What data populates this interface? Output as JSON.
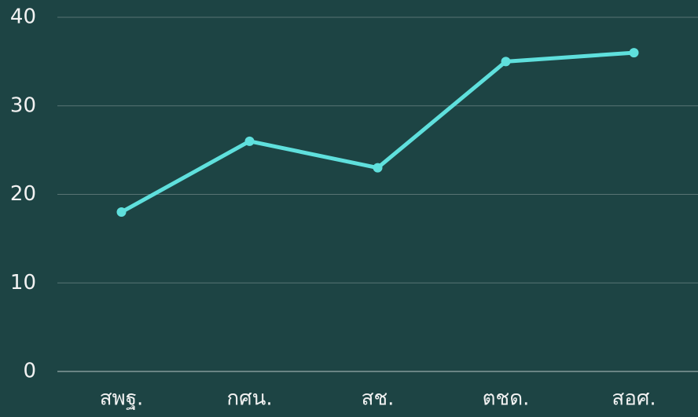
{
  "chart_data": {
    "type": "line",
    "categories": [
      "สพฐ.",
      "กศน.",
      "สช.",
      "ตชด.",
      "สอศ."
    ],
    "series": [
      {
        "color": "#5fe0dd",
        "values": [
          18,
          26,
          23,
          35,
          36
        ]
      }
    ],
    "ylim": [
      0,
      40
    ],
    "yticks": [
      0,
      10,
      20,
      30,
      40
    ],
    "grid": true
  }
}
